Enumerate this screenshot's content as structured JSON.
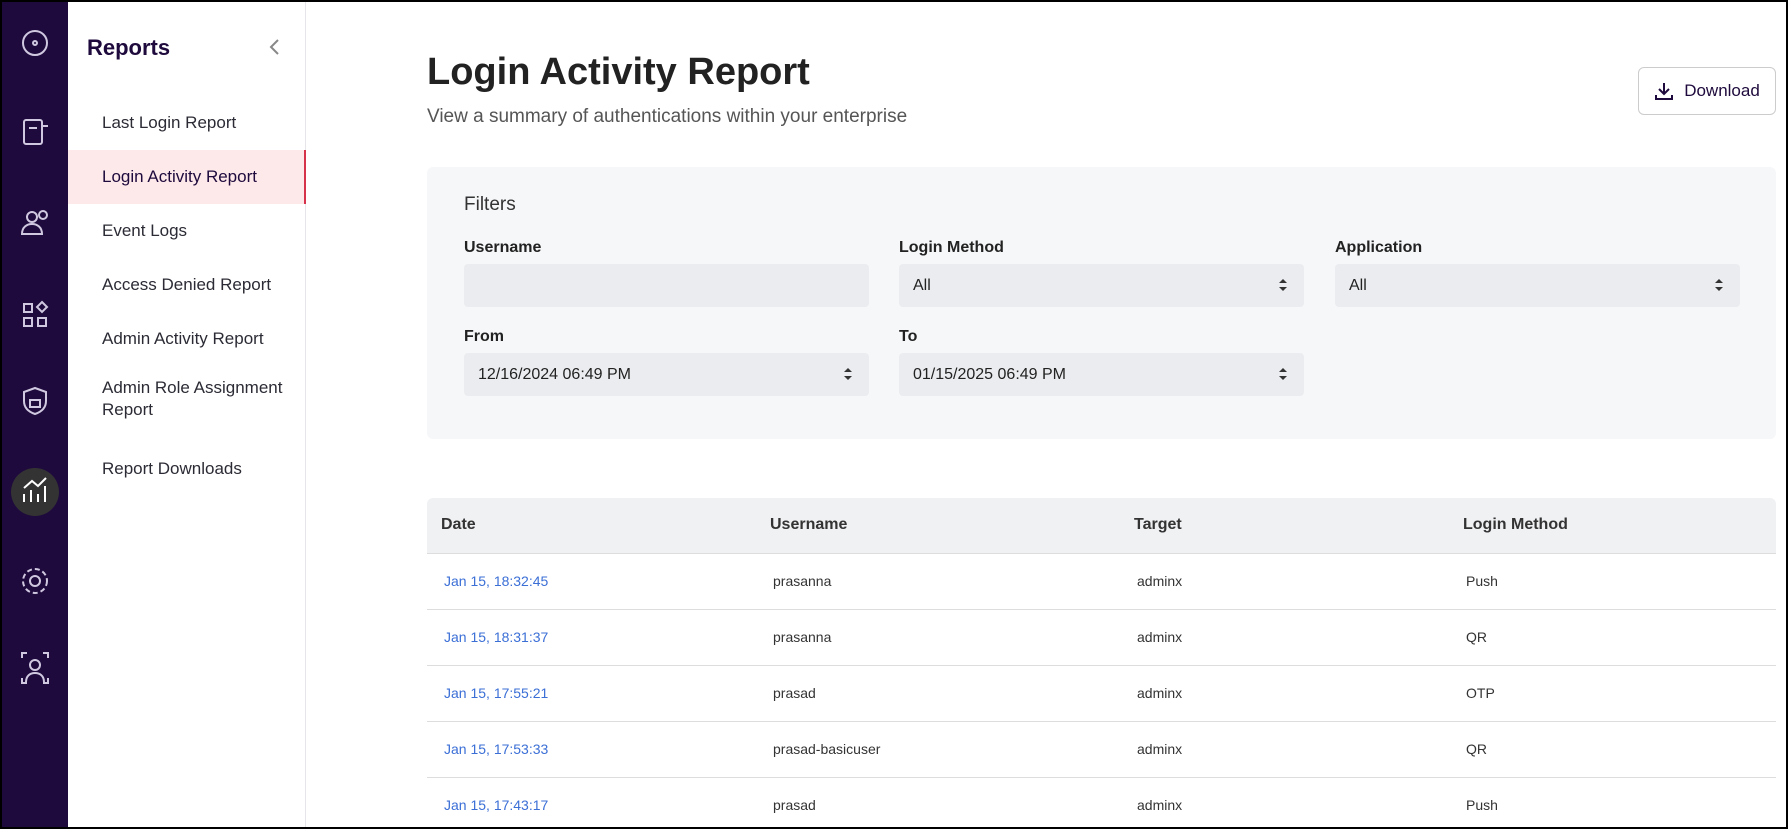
{
  "sidebar": {
    "title": "Reports",
    "items": [
      "Last Login Report",
      "Login Activity Report",
      "Event Logs",
      "Access Denied Report",
      "Admin Activity Report",
      "Admin Role Assignment Report",
      "Report Downloads"
    ],
    "active": 1
  },
  "header": {
    "title": "Login Activity Report",
    "subtitle": "View a summary of authentications within your enterprise",
    "download": "Download"
  },
  "filters": {
    "title": "Filters",
    "fields": [
      {
        "label": "Username"
      },
      {
        "label": "Login Method",
        "value": "All"
      },
      {
        "label": "Application",
        "value": "All"
      },
      {
        "label": "From",
        "value": "12/16/2024 06:49 PM"
      },
      {
        "label": "To",
        "value": "01/15/2025 06:49 PM"
      }
    ]
  },
  "table": {
    "columns": [
      "Date",
      "Username",
      "Target",
      "Login Method"
    ],
    "rows": [
      [
        "Jan 15, 18:32:45",
        "prasanna",
        "adminx",
        "Push"
      ],
      [
        "Jan 15, 18:31:37",
        "prasanna",
        "adminx",
        "QR"
      ],
      [
        "Jan 15, 17:55:21",
        "prasad",
        "adminx",
        "OTP"
      ],
      [
        "Jan 15, 17:53:33",
        "prasad-basicuser",
        "adminx",
        "QR"
      ],
      [
        "Jan 15, 17:43:17",
        "prasad",
        "adminx",
        "Push"
      ]
    ]
  }
}
